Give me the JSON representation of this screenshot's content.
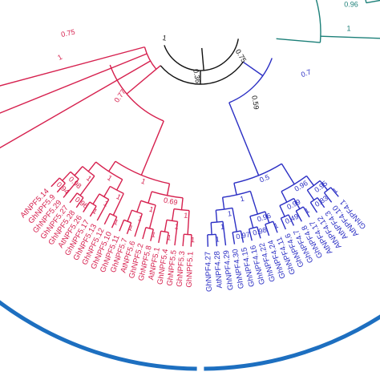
{
  "clades": [
    {
      "color": "#d6204e",
      "leaves": [
        "AtNPF5.14",
        "GhNPF5.9",
        "GhNPF5.29",
        "GhNPF5.27",
        "GhNPF5.28",
        "AtNPF5.26",
        "GhNPF5.17",
        "GhNPF5.13",
        "GhNPF5.12",
        "GhNPF5.10",
        "GhNPF5.11",
        "GhNPF5.7",
        "AtNPF5.6",
        "GhNPF5.2",
        "GhNPF5.8",
        "AtNPF5.1",
        "GhNPF5.4",
        "GhNPF5.5",
        "GhNPF5.3",
        "GhNPF5.1"
      ],
      "support": [
        "0.94",
        "0.98",
        "0.96",
        "1",
        "1",
        "1",
        "1",
        "1",
        "1",
        "1",
        "1",
        "1",
        "1",
        "1",
        "1",
        "1",
        "1",
        "0.69",
        "1"
      ]
    },
    {
      "color": "#2b2fc4",
      "leaves": [
        "GhNPF4.27",
        "AtNPF4.28",
        "GhNPF4.29",
        "GhNPF4.30",
        "GhNPF4.15",
        "GhNPF4.16",
        "GhNPF4.22",
        "GhNPF4.24",
        "GhNPF4.11",
        "GhNPF4.6",
        "GhNPF4.7",
        "GhNPF4.8",
        "AtNPF4.17",
        "AtNPF4.12",
        "AtNPF4.3",
        "AtNPF4.10",
        "GhNPF4.1"
      ],
      "support": [
        "1",
        "1",
        "0.97",
        "1",
        "0.98",
        "1",
        "0.96",
        "1",
        "0.49",
        "1",
        "0.99",
        "0.83",
        "1",
        "0.95",
        "0.96",
        "0.5"
      ]
    }
  ],
  "root_support": [
    "0.75",
    "1",
    "0.77",
    "1",
    "0.36",
    "0.75",
    "0.59",
    "0.7",
    "1",
    "0.96"
  ]
}
